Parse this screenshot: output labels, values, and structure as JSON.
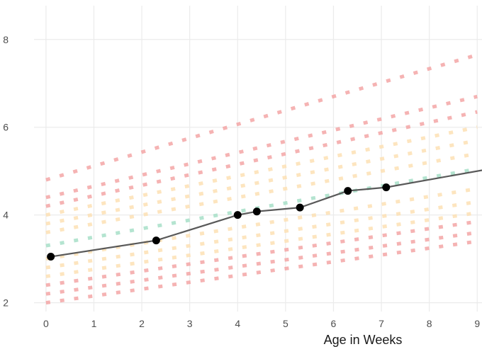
{
  "chart_data": {
    "type": "line",
    "title": "",
    "xlabel": "Age in Weeks",
    "ylabel": "",
    "xlim": [
      -0.25,
      9.1
    ],
    "ylim": [
      1.8,
      8.9
    ],
    "x_ticks": [
      0,
      1,
      2,
      3,
      4,
      5,
      6,
      7,
      8,
      9
    ],
    "y_ticks": [
      2,
      4,
      6,
      8
    ],
    "grid": true,
    "legend": "none",
    "colors": {
      "series": "#595959",
      "point": "#000000",
      "band_outer": "#f4a6a6",
      "band_mid": "#fde1b5",
      "band_inner": "#a8e0c8",
      "grid": "#ebebeb"
    },
    "reference_curves": {
      "x": [
        0,
        9
      ],
      "lines": [
        {
          "band": "outer",
          "values": [
            2.0,
            3.4
          ]
        },
        {
          "band": "outer",
          "values": [
            2.2,
            3.6
          ]
        },
        {
          "band": "outer",
          "values": [
            2.4,
            3.85
          ]
        },
        {
          "band": "mid",
          "values": [
            2.6,
            4.05
          ]
        },
        {
          "band": "mid",
          "values": [
            2.8,
            4.3
          ]
        },
        {
          "band": "mid",
          "values": [
            3.0,
            4.6
          ]
        },
        {
          "band": "inner",
          "values": [
            3.3,
            5.05
          ]
        },
        {
          "band": "mid",
          "values": [
            3.6,
            5.4
          ]
        },
        {
          "band": "mid",
          "values": [
            3.8,
            5.7
          ]
        },
        {
          "band": "mid",
          "values": [
            4.0,
            6.0
          ]
        },
        {
          "band": "outer",
          "values": [
            4.2,
            6.35
          ]
        },
        {
          "band": "outer",
          "values": [
            4.4,
            6.7
          ]
        },
        {
          "band": "outer",
          "values": [
            4.8,
            7.65
          ]
        }
      ]
    },
    "series": [
      {
        "x": [
          0.1,
          2.3,
          4.0,
          4.4,
          5.3,
          6.3,
          7.1,
          9.1
        ],
        "values": [
          3.05,
          3.42,
          4.0,
          4.08,
          4.17,
          4.55,
          4.63,
          5.02
        ],
        "markers": [
          true,
          true,
          true,
          true,
          true,
          true,
          true,
          false
        ]
      }
    ]
  }
}
